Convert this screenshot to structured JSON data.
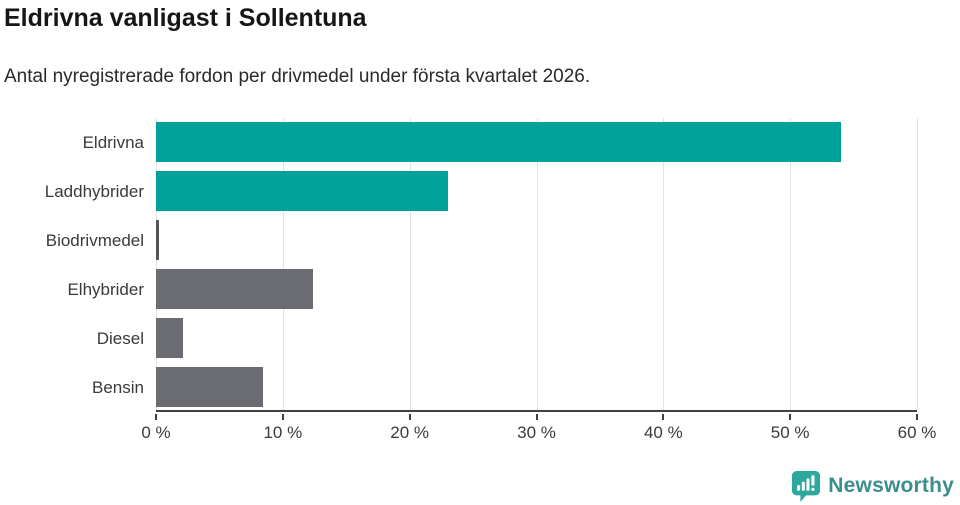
{
  "header": {
    "title": "Eldrivna vanligast i Sollentuna",
    "subtitle": "Antal nyregistrerade fordon per drivmedel under första kvartalet 2026."
  },
  "chart_data": {
    "type": "bar",
    "orientation": "horizontal",
    "title": "Eldrivna vanligast i Sollentuna",
    "subtitle": "Antal nyregistrerade fordon per drivmedel under första kvartalet 2026.",
    "categories": [
      "Eldrivna",
      "Laddhybrider",
      "Biodrivmedel",
      "Elhybrider",
      "Diesel",
      "Bensin"
    ],
    "values": [
      54,
      23,
      0.2,
      12.4,
      2.1,
      8.4
    ],
    "unit": "%",
    "xlabel": "",
    "ylabel": "",
    "xlim": [
      0,
      60
    ],
    "x_ticks": [
      0,
      10,
      20,
      30,
      40,
      50,
      60
    ],
    "x_tick_labels": [
      "0 %",
      "10 %",
      "20 %",
      "30 %",
      "40 %",
      "50 %",
      "60 %"
    ],
    "bar_colors": [
      "#00a199",
      "#00a199",
      "#55555c",
      "#6b6b72",
      "#6b6b72",
      "#6b6b72"
    ],
    "grid": "vertical",
    "legend": "none"
  },
  "colors": {
    "accent_teal": "#00a199",
    "neutral_gray": "#6b6b72",
    "thin_bar_gray": "#55555c",
    "gridline": "#e2e2e2",
    "axis": "#3f3f44",
    "logo_teal": "#2ea89f",
    "logo_text": "#3b8e8d"
  },
  "footer": {
    "brand": "Newsworthy",
    "logo_icon": "bar-chart-speech-bubble"
  }
}
